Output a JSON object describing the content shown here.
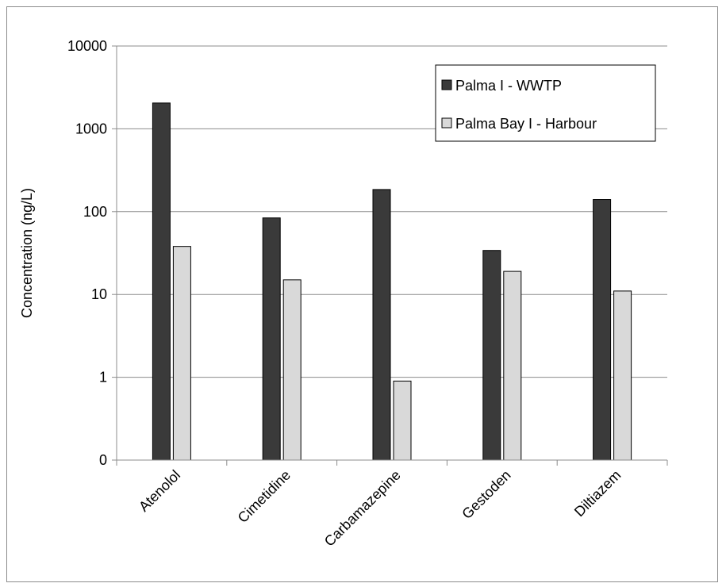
{
  "chart_data": {
    "type": "bar",
    "title": "",
    "xlabel": "",
    "ylabel": "Concentration (ng/L)",
    "y_scale": "log",
    "ylim": [
      0.1,
      10000
    ],
    "ytick_labels": [
      "0",
      "1",
      "10",
      "100",
      "1000",
      "10000"
    ],
    "ytick_values": [
      0.1,
      1,
      10,
      100,
      1000,
      10000
    ],
    "categories": [
      "Atenolol",
      "Cimetidine",
      "Carbamazepine",
      "Gestoden",
      "Diltiazem"
    ],
    "series": [
      {
        "name": "Palma I - WWTP",
        "color": "#3a3a3a",
        "values": [
          2050,
          84,
          185,
          34,
          140
        ]
      },
      {
        "name": "Palma Bay I - Harbour",
        "color": "#d9d9d9",
        "values": [
          38,
          15,
          0.9,
          19,
          11
        ]
      }
    ],
    "grid": "horizontal major gridlines",
    "legend_position": "top-right"
  }
}
